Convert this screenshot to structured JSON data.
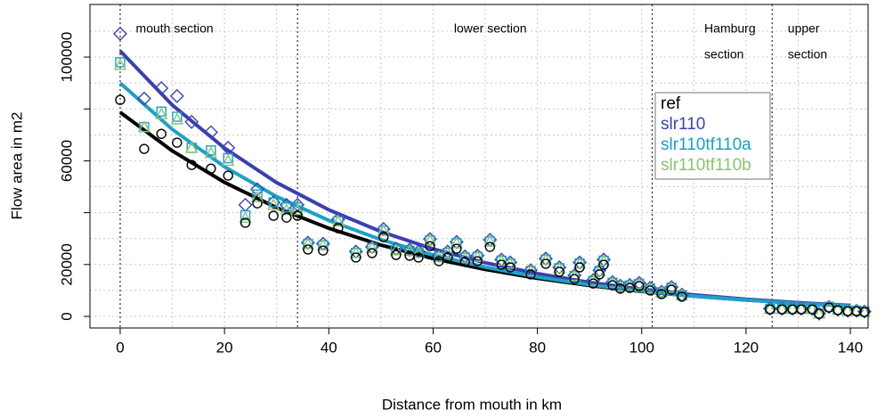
{
  "chart_data": {
    "type": "scatter",
    "xlabel": "Distance from mouth in km",
    "ylabel": "Flow area in m2",
    "xlim": [
      -5.8,
      143.4
    ],
    "ylim": [
      -4470,
      120300
    ],
    "xticks": [
      0,
      20,
      40,
      60,
      80,
      100,
      120,
      140
    ],
    "yticks": [
      0,
      20000,
      60000,
      100000
    ],
    "yminor": [
      40000,
      80000
    ],
    "xgrid": [
      0,
      10,
      20,
      30,
      40,
      50,
      60,
      70,
      80,
      90,
      100,
      110,
      120,
      130,
      140
    ],
    "ygrid": [
      0,
      10000,
      20000,
      30000,
      40000,
      50000,
      60000,
      70000,
      80000,
      90000,
      100000,
      110000
    ],
    "sections": [
      0,
      34,
      102,
      125
    ],
    "annotations": [
      {
        "text": "mouth section",
        "x": 3
      },
      {
        "text": "lower section",
        "x": 64
      },
      {
        "text": "Hamburg",
        "x": 112
      },
      {
        "text": "section",
        "x": 112
      },
      {
        "text": "upper",
        "x": 128
      },
      {
        "text": "section",
        "x": 128
      }
    ],
    "x": [
      0,
      4.6,
      7.9,
      10.9,
      13.7,
      17.4,
      20.7,
      24,
      26.3,
      29.4,
      31.9,
      34,
      36,
      38.9,
      41.8,
      45.2,
      48.3,
      50.5,
      52.9,
      55.5,
      57.2,
      59.4,
      61.1,
      62.8,
      64.5,
      66.1,
      68.5,
      70.9,
      73.1,
      74.8,
      78.7,
      81.6,
      84.2,
      87.1,
      88.1,
      90.7,
      91.9,
      92.7,
      94.4,
      95.9,
      97.7,
      99.5,
      101.6,
      103.8,
      105.7,
      107.7,
      124.6,
      126.9,
      128.9,
      130.6,
      132.7,
      134,
      135.9,
      137.6,
      139.5,
      141.2,
      142.7
    ],
    "series": [
      {
        "name": "ref",
        "color": "#000000",
        "marker": "circle",
        "values": [
          83500,
          64600,
          70400,
          67000,
          58400,
          57000,
          54300,
          36100,
          43600,
          38800,
          38100,
          38800,
          25800,
          25400,
          34000,
          22700,
          24400,
          30600,
          23700,
          23400,
          22700,
          27100,
          21300,
          22700,
          26100,
          21000,
          21300,
          26800,
          19900,
          18900,
          16200,
          20300,
          17200,
          14400,
          18900,
          12700,
          16200,
          19900,
          12000,
          10700,
          11000,
          11700,
          10000,
          8600,
          10300,
          7600,
          2700,
          2700,
          2700,
          2700,
          2700,
          1000,
          3400,
          2400,
          2000,
          2000,
          1700
        ]
      },
      {
        "name": "slr110",
        "color": "#3a43b4",
        "marker": "diamond",
        "values": [
          109000,
          84000,
          88000,
          85000,
          75000,
          71000,
          65000,
          43000,
          49000,
          44000,
          43000,
          43000,
          28400,
          28000,
          37400,
          25000,
          26800,
          33700,
          26100,
          25700,
          25000,
          29800,
          23400,
          25000,
          28700,
          23100,
          23400,
          29500,
          21900,
          20800,
          17800,
          22300,
          18900,
          15800,
          20800,
          14000,
          17800,
          21900,
          13200,
          11800,
          12100,
          12900,
          11000,
          9500,
          11300,
          8400,
          3000,
          3000,
          3000,
          3000,
          3000,
          1100,
          3700,
          2600,
          2200,
          2200,
          1900
        ]
      },
      {
        "name": "slr110tf110a",
        "color": "#1a9fcb",
        "marker": "square",
        "values": [
          98000,
          73000,
          79000,
          77000,
          65000,
          64000,
          61000,
          39000,
          47000,
          44000,
          42000,
          42000,
          27900,
          27400,
          36700,
          24500,
          26400,
          33000,
          25600,
          25300,
          24500,
          29300,
          23000,
          24500,
          28200,
          22700,
          23000,
          28900,
          21500,
          20400,
          17500,
          21900,
          18600,
          15600,
          20400,
          13700,
          17500,
          21500,
          13000,
          11600,
          11900,
          12600,
          10800,
          9300,
          11100,
          8200,
          2900,
          2900,
          2900,
          2900,
          2900,
          1100,
          3700,
          2600,
          2200,
          2200,
          1800
        ]
      },
      {
        "name": "slr110tf110b",
        "color": "#8dc26d",
        "marker": "triangle",
        "values": [
          97000,
          73000,
          78000,
          76000,
          65000,
          63000,
          60000,
          38000,
          46000,
          43000,
          41000,
          41000,
          27900,
          27400,
          36700,
          24500,
          26400,
          33000,
          25600,
          25300,
          24500,
          29300,
          23000,
          24500,
          28200,
          22700,
          23000,
          28900,
          21500,
          20400,
          17500,
          21900,
          18600,
          15600,
          20400,
          13700,
          17500,
          21500,
          13000,
          11600,
          11900,
          12600,
          10800,
          9300,
          11100,
          8200,
          2900,
          2900,
          2900,
          2900,
          2900,
          1100,
          3700,
          2600,
          2200,
          2200,
          1800
        ]
      }
    ],
    "fit_x": [
      0,
      10,
      20,
      30,
      40,
      50,
      60,
      70,
      80,
      90,
      100,
      110,
      120,
      130,
      140
    ],
    "fits": [
      {
        "color": "#000000",
        "values": [
          78700,
          63800,
          51700,
          41900,
          34000,
          27500,
          22300,
          18100,
          14700,
          11900,
          9600,
          7800,
          6300,
          5100,
          4150
        ]
      },
      {
        "color": "#3a3fb0",
        "values": [
          102400,
          81500,
          64900,
          51600,
          41100,
          32700,
          26000,
          20700,
          16500,
          13100,
          10500,
          8300,
          6600,
          5300,
          4200
        ]
      },
      {
        "color": "#1ea0c8",
        "values": [
          90000,
          72100,
          57700,
          46200,
          37000,
          29600,
          23700,
          19000,
          15200,
          12200,
          9800,
          7800,
          6300,
          5000,
          4000
        ]
      }
    ]
  }
}
